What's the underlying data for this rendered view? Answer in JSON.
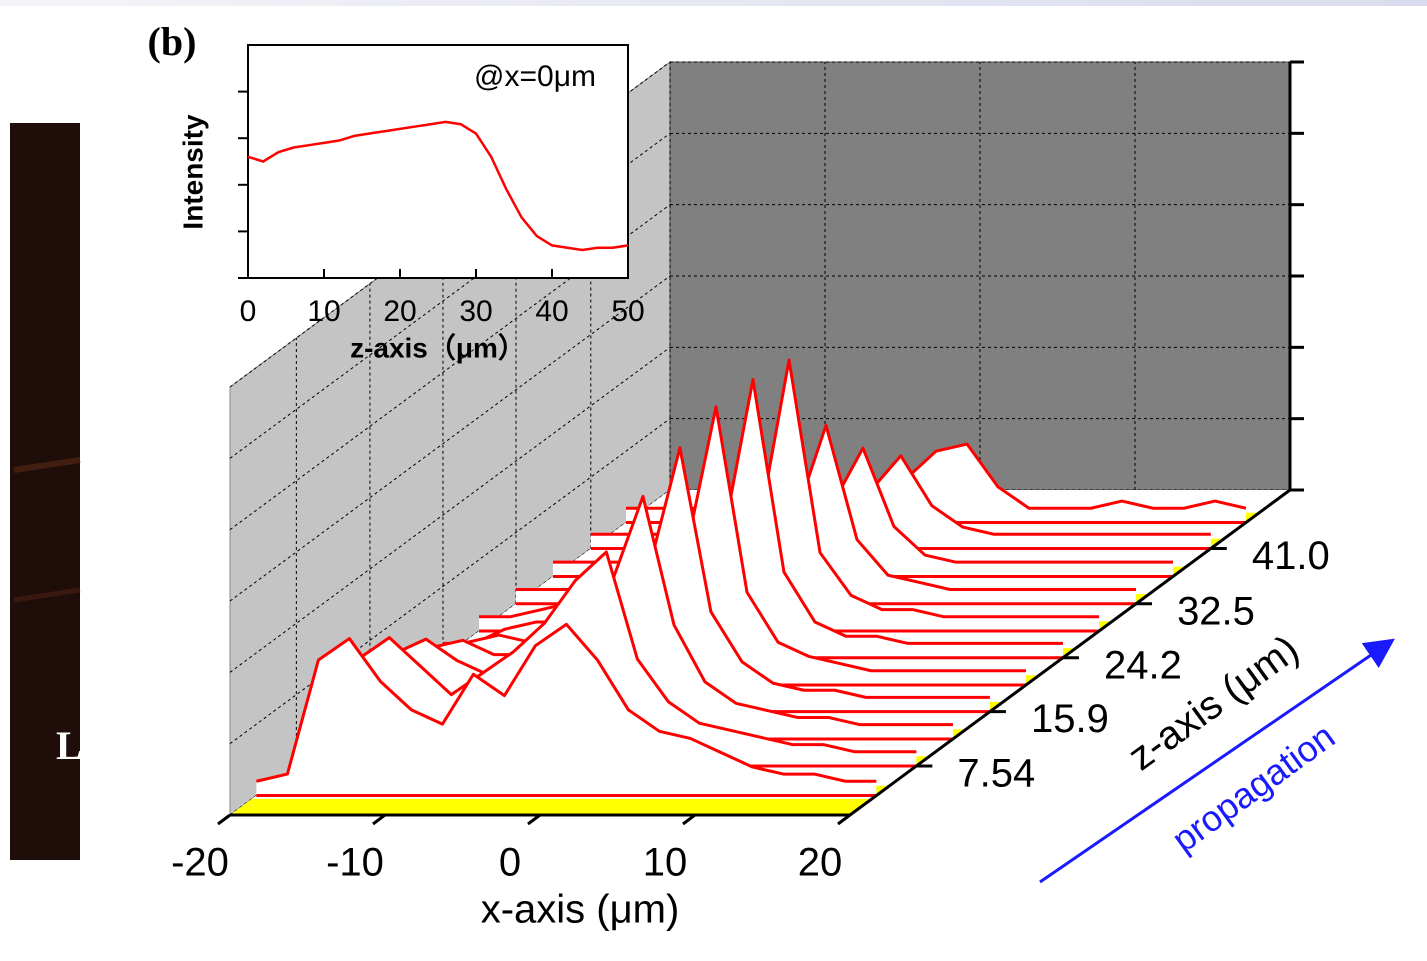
{
  "panel_label": "(b)",
  "side_image_text": "L",
  "chart_data": [
    {
      "type": "line",
      "annotation": "@x=0μm",
      "ylabel": "Intensity",
      "xlabel": "z-axis（μm）",
      "color": "#ff0000",
      "xlim": [
        0,
        50
      ],
      "xticks": [
        0,
        10,
        20,
        30,
        40,
        50
      ],
      "ylim": [
        0,
        1
      ],
      "yticks": [
        0,
        0.2,
        0.4,
        0.6,
        0.8
      ],
      "x": [
        0,
        2,
        4,
        6,
        8,
        10,
        12,
        14,
        16,
        18,
        20,
        22,
        24,
        26,
        28,
        30,
        32,
        34,
        36,
        38,
        40,
        42,
        44,
        46,
        48,
        50
      ],
      "values": [
        0.52,
        0.5,
        0.54,
        0.56,
        0.57,
        0.58,
        0.59,
        0.61,
        0.62,
        0.63,
        0.64,
        0.65,
        0.66,
        0.67,
        0.66,
        0.62,
        0.52,
        0.38,
        0.26,
        0.18,
        0.14,
        0.13,
        0.12,
        0.13,
        0.13,
        0.14
      ]
    },
    {
      "type": "waterfall",
      "xlabel": "x-axis (μm)",
      "zlabel": "z-axis (μm)",
      "arrow_label": "propagation",
      "color": "#ff0000",
      "floor_color": "#ffff00",
      "grid": true,
      "xlim": [
        -20,
        20
      ],
      "xticks": [
        -20,
        -10,
        0,
        10,
        20
      ],
      "zlim": [
        0,
        50
      ],
      "zticks": [
        7.54,
        15.9,
        24.2,
        32.5,
        {
          "value": 41,
          "label": "41.0"
        }
      ],
      "ylim": [
        0,
        6
      ],
      "yticks": [
        0,
        1,
        2,
        3,
        4,
        5,
        6
      ],
      "x": [
        -20,
        -18,
        -16,
        -14,
        -12,
        -10,
        -8,
        -6,
        -4,
        -2,
        0,
        2,
        4,
        6,
        8,
        10,
        12,
        14,
        16,
        18,
        20
      ],
      "series": [
        {
          "z": 45,
          "values": [
            0.2,
            0.2,
            0.2,
            0.2,
            0.2,
            0.2,
            0.2,
            0.2,
            0.3,
            0.6,
            1.0,
            1.1,
            0.5,
            0.2,
            0.2,
            0.2,
            0.3,
            0.2,
            0.2,
            0.3,
            0.2
          ]
        },
        {
          "z": 41,
          "values": [
            0.2,
            0.2,
            0.2,
            0.2,
            0.2,
            0.2,
            0.2,
            0.3,
            0.4,
            0.8,
            1.3,
            0.6,
            0.3,
            0.2,
            0.2,
            0.2,
            0.2,
            0.2,
            0.2,
            0.2,
            0.2
          ]
        },
        {
          "z": 36.7,
          "values": [
            0.2,
            0.2,
            0.2,
            0.2,
            0.2,
            0.2,
            0.3,
            0.3,
            0.5,
            1.0,
            1.8,
            0.7,
            0.3,
            0.2,
            0.2,
            0.2,
            0.2,
            0.2,
            0.2,
            0.2,
            0.2
          ]
        },
        {
          "z": 32.5,
          "values": [
            0.2,
            0.2,
            0.2,
            0.2,
            0.3,
            0.3,
            0.3,
            0.4,
            0.6,
            1.2,
            2.5,
            0.9,
            0.4,
            0.3,
            0.2,
            0.2,
            0.2,
            0.2,
            0.2,
            0.2,
            0.2
          ]
        },
        {
          "z": 28.3,
          "values": [
            0.2,
            0.2,
            0.3,
            0.4,
            0.4,
            0.4,
            0.5,
            0.6,
            0.9,
            1.4,
            3.8,
            1.1,
            0.5,
            0.3,
            0.3,
            0.2,
            0.2,
            0.2,
            0.2,
            0.2,
            0.2
          ]
        },
        {
          "z": 24.2,
          "values": [
            0.2,
            0.2,
            0.4,
            0.5,
            0.5,
            0.5,
            0.6,
            0.8,
            1.0,
            1.6,
            3.9,
            1.2,
            0.5,
            0.3,
            0.3,
            0.2,
            0.2,
            0.2,
            0.2,
            0.2,
            0.2
          ]
        },
        {
          "z": 20,
          "values": [
            0.2,
            0.2,
            0.6,
            0.7,
            0.6,
            0.6,
            0.8,
            0.9,
            1.2,
            1.8,
            3.9,
            1.3,
            0.6,
            0.4,
            0.3,
            0.2,
            0.2,
            0.2,
            0.2,
            0.2,
            0.2
          ]
        },
        {
          "z": 15.9,
          "values": [
            0.2,
            0.2,
            0.9,
            1.0,
            0.8,
            0.8,
            1.0,
            1.2,
            1.4,
            2.0,
            3.7,
            1.4,
            0.7,
            0.4,
            0.3,
            0.3,
            0.2,
            0.2,
            0.2,
            0.2,
            0.2
          ]
        },
        {
          "z": 11.7,
          "values": [
            0.2,
            0.2,
            1.2,
            1.4,
            1.1,
            0.9,
            1.2,
            1.4,
            1.8,
            2.2,
            3.4,
            1.6,
            0.8,
            0.5,
            0.4,
            0.3,
            0.3,
            0.2,
            0.2,
            0.2,
            0.2
          ]
        },
        {
          "z": 7.54,
          "values": [
            0.2,
            0.3,
            1.5,
            1.8,
            1.4,
            1.0,
            1.3,
            1.6,
            2.0,
            2.6,
            3.0,
            1.5,
            0.9,
            0.6,
            0.5,
            0.4,
            0.3,
            0.3,
            0.2,
            0.2,
            0.2
          ]
        },
        {
          "z": 3,
          "values": [
            0.2,
            0.3,
            1.9,
            2.2,
            1.6,
            1.2,
            1.0,
            1.7,
            1.4,
            2.1,
            2.4,
            1.9,
            1.2,
            0.9,
            0.8,
            0.6,
            0.4,
            0.3,
            0.3,
            0.2,
            0.2
          ]
        }
      ]
    }
  ]
}
